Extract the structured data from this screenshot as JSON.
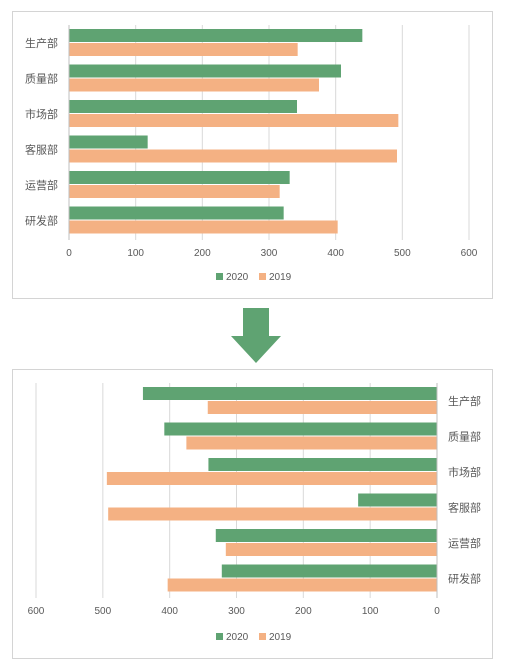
{
  "chart_data": [
    {
      "type": "bar",
      "orientation": "horizontal",
      "categories": [
        "生产部",
        "质量部",
        "市场部",
        "客服部",
        "运营部",
        "研发部"
      ],
      "series": [
        {
          "name": "2020",
          "values": [
            440,
            408,
            342,
            118,
            331,
            322
          ],
          "color": "#5fa372"
        },
        {
          "name": "2019",
          "values": [
            343,
            375,
            494,
            492,
            316,
            403
          ],
          "color": "#f4b183"
        }
      ],
      "xlim": [
        0,
        600
      ],
      "xticks": [
        0,
        100,
        200,
        300,
        400,
        500,
        600
      ],
      "reverse_x": false,
      "category_axis": "left",
      "grid": true,
      "legend": "bottom"
    },
    {
      "type": "bar",
      "orientation": "horizontal",
      "categories": [
        "生产部",
        "质量部",
        "市场部",
        "客服部",
        "运营部",
        "研发部"
      ],
      "series": [
        {
          "name": "2020",
          "values": [
            440,
            408,
            342,
            118,
            331,
            322
          ],
          "color": "#5fa372"
        },
        {
          "name": "2019",
          "values": [
            343,
            375,
            494,
            492,
            316,
            403
          ],
          "color": "#f4b183"
        }
      ],
      "xlim": [
        0,
        600
      ],
      "xticks": [
        0,
        100,
        200,
        300,
        400,
        500,
        600
      ],
      "reverse_x": true,
      "category_axis": "right",
      "grid": true,
      "legend": "bottom"
    }
  ],
  "arrow": {
    "icon": "down-arrow-icon",
    "color": "#5fa372"
  }
}
